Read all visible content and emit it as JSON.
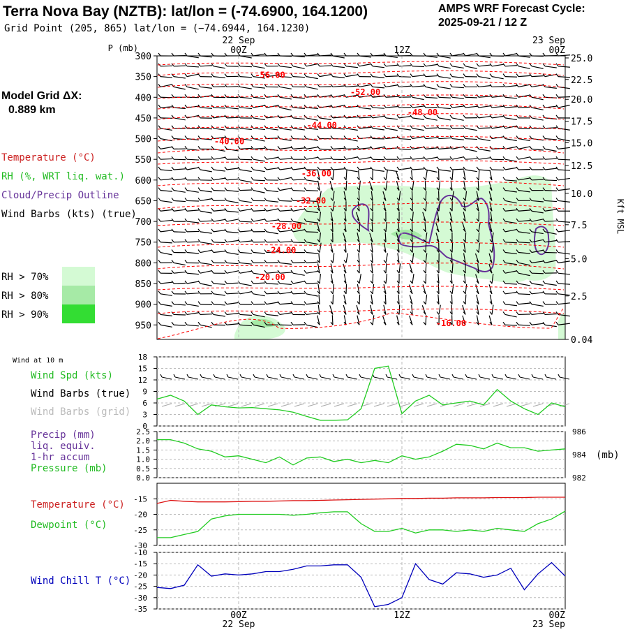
{
  "header": {
    "title": "Terra Nova Bay (NZTB):  lat/lon = (-74.6900, 164.1200)",
    "gridpoint": "Grid Point (205, 865) lat/lon = (−74.6944, 164.1230)",
    "cycle_line1": "AMPS WRF Forecast Cycle:",
    "cycle_line2": "2025-09-21 / 12  Z",
    "model_grid_label": "Model Grid ΔX:",
    "model_grid_value": "0.889 km"
  },
  "time_axis": {
    "top_dates": [
      "22 Sep",
      "23 Sep"
    ],
    "labels": [
      "00Z",
      "12Z",
      "00Z"
    ],
    "bottom_dates": [
      "22 Sep",
      "23 Sep"
    ],
    "range_hours": [
      -6,
      24
    ]
  },
  "legends": {
    "temperature": "Temperature (°C)",
    "rh": "RH (%, WRT liq. wat.)",
    "cloud": "Cloud/Precip Outline",
    "wind": "Wind Barbs (kts) (true)",
    "rh70": "RH > 70%",
    "rh80": "RH > 80%",
    "rh90": "RH > 90%",
    "wind10m": "Wind at 10 m",
    "wspd": "Wind Spd (kts)",
    "wbarbs_true": "Wind Barbs (true)",
    "wbarbs_grid": "Wind Barbs (grid)",
    "precip": "Precip (mm)",
    "precip2": "liq. equiv.",
    "precip3": "1-hr accum",
    "pressure": "Pressure (mb)",
    "pressure_unit": "(mb)",
    "temp2": "Temperature (°C)",
    "dewpoint": "Dewpoint (°C)",
    "windchill": "Wind Chill T (°C)"
  },
  "colors": {
    "temperature": "#ff0000",
    "rh70": "#d4fad4",
    "rh80": "#a6eaa6",
    "rh90": "#33dd33",
    "cloud": "#663399",
    "green": "#22cc22",
    "windchill": "#0000bb",
    "grid": "#bbbbbb"
  },
  "chart_data": [
    {
      "type": "heatmap",
      "name": "Vertical cross-section (time-height)",
      "ylabel": "P (mb)",
      "ylabel_right": "Kft MSL",
      "pressure_levels": [
        300,
        350,
        400,
        450,
        500,
        550,
        600,
        650,
        700,
        750,
        800,
        850,
        900,
        950
      ],
      "pressure_range": [
        300,
        985
      ],
      "height_kft": [
        25.0,
        22.5,
        20.0,
        17.5,
        15.0,
        12.5,
        10.0,
        7.5,
        5.0,
        2.5,
        0.04
      ],
      "height_labels": [
        "25.0",
        "22.5",
        "20.0",
        "17.5",
        "15.0",
        "12.5",
        "10.0",
        "7.5",
        "5.0",
        "2.5",
        "0.04"
      ],
      "height_label_pressure": [
        305,
        357,
        405,
        458,
        510,
        565,
        632,
        708,
        790,
        880,
        985
      ],
      "temperature_contour_labels": [
        {
          "text": "-56.00",
          "t": 1.2,
          "p": 346
        },
        {
          "text": "-52.00",
          "t": 8.2,
          "p": 388
        },
        {
          "text": "-48.00",
          "t": 12.4,
          "p": 437
        },
        {
          "text": "-44.00",
          "t": 5.0,
          "p": 468
        },
        {
          "text": "-40.00",
          "t": -1.8,
          "p": 507
        },
        {
          "text": "-36.00",
          "t": 4.6,
          "p": 584
        },
        {
          "text": "-32.00",
          "t": 4.2,
          "p": 650
        },
        {
          "text": "-28.00",
          "t": 2.4,
          "p": 712
        },
        {
          "text": "-24.00",
          "t": 2.0,
          "p": 770
        },
        {
          "text": "-20.00",
          "t": 1.2,
          "p": 835
        },
        {
          "text": "-16.00",
          "t": 14.5,
          "p": 946
        }
      ]
    },
    {
      "type": "line",
      "name": "Wind speed at 10 m",
      "ylabel": "Wind Spd (kts)",
      "yticks": [
        0,
        3,
        6,
        9,
        12,
        15,
        18
      ],
      "ylim": [
        0,
        18
      ],
      "x": [
        -6,
        -5,
        -4,
        -3,
        -2,
        -1,
        0,
        1,
        2,
        3,
        4,
        5,
        6,
        7,
        8,
        9,
        10,
        11,
        12,
        13,
        14,
        15,
        16,
        17,
        18,
        19,
        20,
        21,
        22,
        23,
        24
      ],
      "values": [
        7,
        8,
        6.5,
        3,
        5.5,
        5,
        4.7,
        4.8,
        4.5,
        4.2,
        3.6,
        2.5,
        1.5,
        1.5,
        1.6,
        4.5,
        15,
        15.6,
        3.2,
        6.5,
        8,
        5.5,
        6,
        6.5,
        5.5,
        9.5,
        6.5,
        4.5,
        3,
        6,
        5
      ]
    },
    {
      "type": "line",
      "name": "Sea-level pressure",
      "ylabel": "Pressure (mb)",
      "left_yticks": [
        "0.0",
        "0.5",
        "1.0",
        "1.5",
        "2.0",
        "2.5"
      ],
      "right_yticks": [
        982,
        984,
        986
      ],
      "ylim": [
        982,
        986
      ],
      "x": [
        -6,
        -5,
        -4,
        -3,
        -2,
        -1,
        0,
        1,
        2,
        3,
        4,
        5,
        6,
        7,
        8,
        9,
        10,
        11,
        12,
        13,
        14,
        15,
        16,
        17,
        18,
        19,
        20,
        21,
        22,
        23,
        24
      ],
      "values": [
        985.3,
        985.3,
        985.0,
        984.5,
        984.3,
        983.8,
        983.9,
        983.6,
        983.3,
        983.8,
        983.1,
        983.7,
        983.8,
        983.4,
        983.6,
        983.3,
        983.5,
        983.3,
        983.9,
        983.6,
        983.8,
        984.3,
        984.9,
        984.8,
        984.5,
        985.0,
        984.6,
        984.6,
        984.3,
        984.4,
        984.5
      ]
    },
    {
      "type": "line",
      "name": "Temperature and dewpoint",
      "yticks": [
        -30,
        -25,
        -20,
        -15
      ],
      "ylim": [
        -30,
        -10
      ],
      "x": [
        -6,
        -5,
        -4,
        -3,
        -2,
        -1,
        0,
        1,
        2,
        3,
        4,
        5,
        6,
        7,
        8,
        9,
        10,
        11,
        12,
        13,
        14,
        15,
        16,
        17,
        18,
        19,
        20,
        21,
        22,
        23,
        24
      ],
      "series": [
        {
          "name": "Temperature (°C)",
          "color": "#dd1111",
          "values": [
            -16.5,
            -15.5,
            -15.8,
            -16.0,
            -16.0,
            -16.0,
            -15.9,
            -15.8,
            -15.8,
            -15.7,
            -15.6,
            -15.6,
            -15.5,
            -15.4,
            -15.3,
            -15.2,
            -15.1,
            -15.0,
            -14.9,
            -14.9,
            -14.8,
            -14.8,
            -14.7,
            -14.7,
            -14.7,
            -14.6,
            -14.6,
            -14.6,
            -14.5,
            -14.5,
            -14.5
          ]
        },
        {
          "name": "Dewpoint (°C)",
          "color": "#22cc22",
          "values": [
            -27.5,
            -27.5,
            -26.5,
            -25.5,
            -21.5,
            -20.5,
            -20.0,
            -20.0,
            -20.0,
            -20.0,
            -20.3,
            -20.0,
            -19.5,
            -19.2,
            -19.2,
            -23.0,
            -25.5,
            -25.5,
            -24.5,
            -26.0,
            -25.0,
            -25.0,
            -25.5,
            -25.0,
            -25.5,
            -24.5,
            -25.0,
            -25.5,
            -23.0,
            -21.5,
            -19.0
          ]
        }
      ]
    },
    {
      "type": "line",
      "name": "Wind chill temperature",
      "ylabel": "Wind Chill T (°C)",
      "yticks": [
        -35,
        -30,
        -25,
        -20,
        -15,
        -10
      ],
      "ylim": [
        -35,
        -10
      ],
      "x": [
        -6,
        -5,
        -4,
        -3,
        -2,
        -1,
        0,
        1,
        2,
        3,
        4,
        5,
        6,
        7,
        8,
        9,
        10,
        11,
        12,
        13,
        14,
        15,
        16,
        17,
        18,
        19,
        20,
        21,
        22,
        23,
        24
      ],
      "values": [
        -25.5,
        -26,
        -24.5,
        -15.5,
        -20.5,
        -19.5,
        -20,
        -19.5,
        -18.5,
        -18.5,
        -17.5,
        -16,
        -16,
        -15.5,
        -15.5,
        -21,
        -34,
        -33,
        -30,
        -15,
        -22,
        -24,
        -19,
        -19.5,
        -21,
        -20,
        -17,
        -26.5,
        -19.5,
        -14.5,
        -20.5
      ]
    }
  ]
}
